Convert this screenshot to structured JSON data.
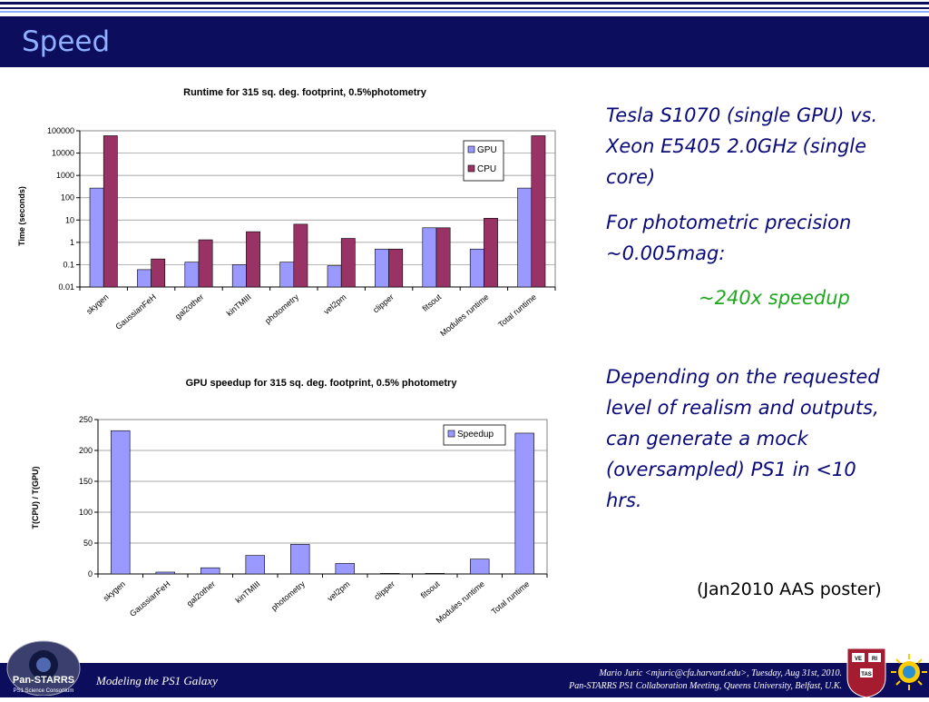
{
  "slide": {
    "title": "Speed",
    "text_1": "Tesla S1070 (single GPU) vs. Xeon E5405 2.0GHz (single core)",
    "text_2": "For photometric precision ~0.005mag:",
    "speedup_text": "~240x speedup",
    "text_3": "Depending on the requested level of realism and outputs, can generate a mock (oversampled) PS1 in <10 hrs.",
    "poster_note": "(Jan2010 AAS poster)"
  },
  "footer": {
    "left": "Modeling the PS1 Galaxy",
    "right_line1": "Mario Juric <mjuric@cfa.harvard.edu>, Tuesday, Aug 31st, 2010.",
    "right_line2": "Pan-STARRS PS1 Collaboration Meeting, Queens University, Belfast, U.K.",
    "logo_left_text": "Pan-STARRS",
    "logo_left_sub": "PS1 Science Consortium",
    "seal_text": [
      "VE",
      "RI",
      "TAS"
    ]
  },
  "colors": {
    "header_bg": "#0d0d5e",
    "title": "#8fb0ff",
    "gpu": "#9999ff",
    "cpu": "#993366",
    "speedup_green": "#1fa81f"
  },
  "chart_data": [
    {
      "type": "bar",
      "title": "Runtime for 315 sq. deg. footprint, 0.5%photometry",
      "ylabel": "Time (seconds)",
      "yscale": "log",
      "ylim": [
        0.01,
        100000
      ],
      "yticks": [
        "0.01",
        "0.1",
        "1",
        "10",
        "100",
        "1000",
        "10000",
        "100000"
      ],
      "categories": [
        "skygen",
        "GaussianFeH",
        "gal2other",
        "kinTMIII",
        "photometry",
        "vel2pm",
        "clipper",
        "fitsout",
        "Modules runtime",
        "Total runtime"
      ],
      "series": [
        {
          "name": "GPU",
          "values": [
            270,
            0.06,
            0.13,
            0.1,
            0.13,
            0.09,
            0.5,
            4.5,
            0.5,
            270
          ]
        },
        {
          "name": "CPU",
          "values": [
            60000,
            0.18,
            1.3,
            3.0,
            6.5,
            1.5,
            0.5,
            4.5,
            12,
            60000
          ]
        }
      ],
      "legend": "top-right",
      "grid": true
    },
    {
      "type": "bar",
      "title": "GPU speedup for 315 sq. deg. footprint, 0.5% photometry",
      "ylabel": "T(CPU) / T(GPU)",
      "ylim": [
        0,
        250
      ],
      "yticks": [
        "0",
        "50",
        "100",
        "150",
        "200",
        "250"
      ],
      "categories": [
        "skygen",
        "GaussianFeH",
        "gal2other",
        "kinTMIII",
        "photometry",
        "vel2pm",
        "clipper",
        "fitsout",
        "Modules runtime",
        "Total runtime"
      ],
      "series": [
        {
          "name": "Speedup",
          "values": [
            232,
            3,
            10,
            30,
            48,
            17,
            1,
            1,
            24,
            228
          ]
        }
      ],
      "legend": "top-right",
      "grid": true
    }
  ]
}
